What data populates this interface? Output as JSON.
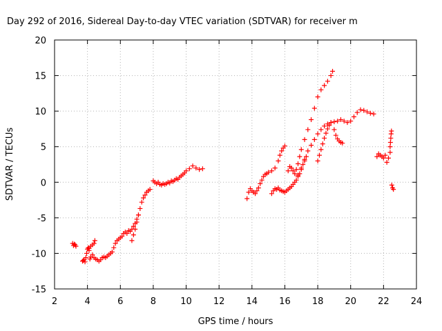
{
  "chart_data": {
    "type": "scatter",
    "title": "Day 292 of 2016, Sidereal Day-to-day VTEC variation (SDTVAR) for receiver m",
    "xlabel": "GPS time / hours",
    "ylabel": "SDTVAR / TECUs",
    "xlim": [
      2,
      24
    ],
    "ylim": [
      -15,
      20
    ],
    "xticks": [
      "2",
      "4",
      "6",
      "8",
      "10",
      "12",
      "14",
      "16",
      "18",
      "20",
      "22",
      "24"
    ],
    "yticks": [
      "-15",
      "-10",
      "-5",
      "0",
      "5",
      "10",
      "15",
      "20"
    ],
    "grid": true,
    "marker": "plus",
    "marker_color": "#ff0000",
    "series": [
      {
        "name": "s1",
        "x": [
          3.1,
          3.15,
          3.2,
          3.25,
          3.3
        ],
        "y": [
          -8.6,
          -8.9,
          -8.7,
          -8.8,
          -9.0
        ]
      },
      {
        "name": "s2",
        "x": [
          3.7,
          3.75,
          3.8,
          3.85,
          3.9,
          3.95,
          4.0,
          4.05,
          4.1,
          4.15,
          4.2
        ],
        "y": [
          -11.1,
          -11.0,
          -10.9,
          -11.2,
          -10.6,
          -10.0,
          -9.4,
          -9.2,
          -9.6,
          -10.8,
          -10.5
        ]
      },
      {
        "name": "s3",
        "x": [
          4.3,
          4.4,
          4.5,
          4.6,
          4.7,
          4.8,
          4.9,
          5.0,
          5.1,
          5.2
        ],
        "y": [
          -10.2,
          -10.6,
          -10.8,
          -10.9,
          -11.1,
          -10.9,
          -10.6,
          -10.5,
          -10.6,
          -10.4
        ]
      },
      {
        "name": "s4",
        "x": [
          4.1,
          4.2,
          4.3,
          4.4,
          4.45
        ],
        "y": [
          -9.3,
          -9.0,
          -8.8,
          -8.6,
          -8.2
        ]
      },
      {
        "name": "s5",
        "x": [
          5.3,
          5.4,
          5.5,
          5.6,
          5.7,
          5.8,
          5.9,
          6.0,
          6.1,
          6.2,
          6.3,
          6.4,
          6.5,
          6.6
        ],
        "y": [
          -10.2,
          -10.0,
          -9.8,
          -9.2,
          -8.6,
          -8.2,
          -8.0,
          -7.8,
          -7.6,
          -7.2,
          -7.0,
          -7.2,
          -6.8,
          -6.9
        ]
      },
      {
        "name": "s6",
        "x": [
          6.7,
          6.8,
          6.9,
          7.0,
          7.1,
          7.2,
          7.3,
          7.4,
          7.5,
          7.6,
          7.7,
          7.8
        ],
        "y": [
          -8.2,
          -7.4,
          -6.6,
          -5.6,
          -4.6,
          -3.7,
          -2.8,
          -2.2,
          -1.8,
          -1.4,
          -1.2,
          -1.0
        ]
      },
      {
        "name": "s7",
        "x": [
          6.7,
          6.8,
          6.9,
          7.0,
          7.1
        ],
        "y": [
          -6.6,
          -6.2,
          -5.8,
          -5.2,
          -4.6
        ]
      },
      {
        "name": "s8",
        "x": [
          8.0,
          8.1,
          8.2,
          8.3,
          8.4,
          8.5,
          8.6,
          8.7,
          8.8,
          8.9,
          9.0,
          9.1,
          9.2,
          9.3,
          9.4,
          9.5,
          9.6,
          9.7,
          9.8,
          9.9,
          10.0,
          10.2,
          10.4,
          10.6,
          10.8,
          11.0
        ],
        "y": [
          0.2,
          0.0,
          -0.2,
          0.0,
          -0.3,
          -0.4,
          -0.2,
          -0.3,
          -0.2,
          0.0,
          -0.1,
          0.2,
          0.1,
          0.3,
          0.5,
          0.4,
          0.7,
          0.9,
          1.1,
          1.3,
          1.6,
          1.9,
          2.3,
          2.0,
          1.8,
          1.9
        ]
      },
      {
        "name": "s9",
        "x": [
          13.7,
          13.8,
          13.9,
          14.0,
          14.1,
          14.2,
          14.3,
          14.4,
          14.5,
          14.6,
          14.7,
          14.8,
          14.9,
          15.0,
          15.2,
          15.4,
          15.6,
          15.7,
          15.8,
          15.9,
          16.0
        ],
        "y": [
          -2.3,
          -1.4,
          -0.9,
          -1.2,
          -1.4,
          -1.6,
          -1.2,
          -0.8,
          -0.2,
          0.3,
          0.8,
          1.1,
          1.2,
          1.4,
          1.6,
          2.0,
          3.0,
          3.8,
          4.4,
          4.8,
          5.1
        ]
      },
      {
        "name": "s10",
        "x": [
          15.2,
          15.3,
          15.4,
          15.5,
          15.6,
          15.7,
          15.8,
          15.9,
          16.0,
          16.1,
          16.2,
          16.3,
          16.4,
          16.5,
          16.6,
          16.7,
          16.8,
          16.9,
          17.0,
          17.1,
          17.2,
          17.3
        ],
        "y": [
          -1.6,
          -1.2,
          -0.9,
          -1.0,
          -0.8,
          -1.1,
          -1.2,
          -1.3,
          -1.4,
          -1.2,
          -1.0,
          -0.8,
          -0.6,
          -0.3,
          0.0,
          0.3,
          0.8,
          1.2,
          1.8,
          2.5,
          3.0,
          3.6
        ]
      },
      {
        "name": "s11",
        "x": [
          16.2,
          16.3,
          16.4,
          16.5,
          16.6,
          16.7,
          16.8,
          16.9,
          17.0,
          17.2,
          17.4,
          17.6,
          17.8,
          18.0,
          18.2,
          18.4,
          18.6,
          18.8,
          18.9
        ],
        "y": [
          1.6,
          2.2,
          2.0,
          1.6,
          1.2,
          1.8,
          2.6,
          3.6,
          4.6,
          6.0,
          7.4,
          8.8,
          10.4,
          12.0,
          13.0,
          13.6,
          14.2,
          15.0,
          15.6
        ]
      },
      {
        "name": "s12",
        "x": [
          16.8,
          17.0,
          17.2,
          17.4,
          17.6,
          17.8,
          18.0,
          18.2,
          18.4,
          18.6,
          18.8,
          19.0
        ],
        "y": [
          1.0,
          2.0,
          3.2,
          4.4,
          5.2,
          6.0,
          6.8,
          7.4,
          7.9,
          8.2,
          8.4,
          8.5
        ]
      },
      {
        "name": "s13",
        "x": [
          18.0,
          18.1,
          18.2,
          18.3,
          18.4,
          18.5,
          18.6,
          18.7,
          18.8
        ],
        "y": [
          3.0,
          3.8,
          4.6,
          5.4,
          6.2,
          6.9,
          7.5,
          8.0,
          8.4
        ]
      },
      {
        "name": "s14",
        "x": [
          19.0,
          19.1,
          19.2,
          19.3,
          19.4,
          19.5
        ],
        "y": [
          7.4,
          6.6,
          6.1,
          5.8,
          5.6,
          5.5
        ]
      },
      {
        "name": "s15",
        "x": [
          19.2,
          19.4,
          19.6,
          19.8,
          20.0,
          20.2,
          20.4,
          20.6,
          20.8,
          21.0,
          21.2,
          21.4
        ],
        "y": [
          8.6,
          8.8,
          8.6,
          8.4,
          8.6,
          9.2,
          9.8,
          10.2,
          10.1,
          9.9,
          9.7,
          9.6
        ]
      },
      {
        "name": "s16",
        "x": [
          21.6,
          21.7,
          21.8,
          21.9,
          22.0,
          22.1,
          22.2,
          22.3,
          22.4
        ],
        "y": [
          3.6,
          4.0,
          3.8,
          3.6,
          3.4,
          3.8,
          2.8,
          3.4,
          4.2
        ]
      },
      {
        "name": "s17",
        "x": [
          22.4,
          22.42,
          22.44,
          22.46,
          22.48
        ],
        "y": [
          5.0,
          5.6,
          6.2,
          6.8,
          7.2
        ]
      },
      {
        "name": "s18",
        "x": [
          22.5,
          22.55,
          22.6
        ],
        "y": [
          -0.4,
          -0.8,
          -1.0
        ]
      }
    ]
  }
}
